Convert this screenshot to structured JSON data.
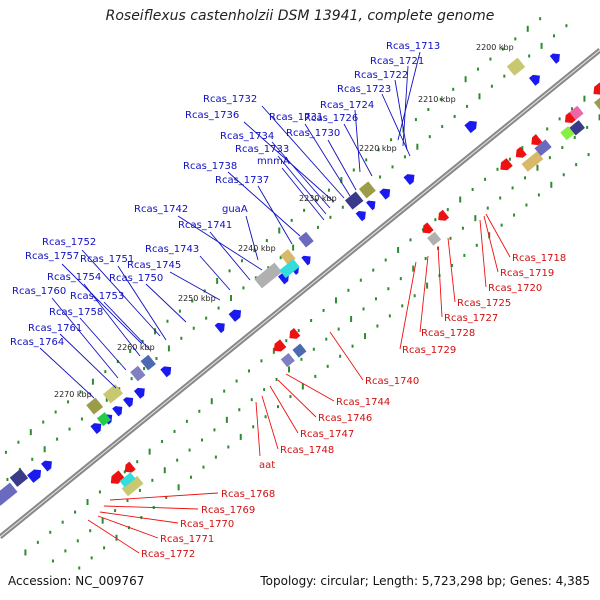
{
  "title": "Roseiflexus castenholzii DSM 13941, complete genome",
  "footer": {
    "accession": "Accession: NC_009767",
    "stats": "Topology: circular; Length: 5,723,298 bp; Genes: 4,385"
  },
  "colors": {
    "forward_strand": "#1a1aee",
    "reverse_strand": "#ee1111",
    "backbone": "#888888",
    "tick": "#2e8b2e",
    "top_label": "#1010c0",
    "bottom_label": "#d01010"
  },
  "scale_labels": [
    "2200 kbp",
    "2210 kbp",
    "2220 kbp",
    "2230 kbp",
    "2240 kbp",
    "2250 kbp",
    "2260 kbp",
    "2270 kbp"
  ],
  "top_labels": [
    "Rcas_1713",
    "Rcas_1721",
    "Rcas_1722",
    "Rcas_1723",
    "Rcas_1724",
    "Rcas_1726",
    "Rcas_1732",
    "Rcas_1736",
    "Rcas_1731",
    "Rcas_1730",
    "Rcas_1734",
    "Rcas_1733",
    "mnmA",
    "Rcas_1738",
    "Rcas_1737",
    "Rcas_1742",
    "guaA",
    "Rcas_1741",
    "Rcas_1743",
    "Rcas_1745",
    "Rcas_1752",
    "Rcas_1757",
    "Rcas_1751",
    "Rcas_1754",
    "Rcas_1750",
    "Rcas_1760",
    "Rcas_1753",
    "Rcas_1758",
    "Rcas_1761",
    "Rcas_1764"
  ],
  "bottom_labels": [
    "Rcas_1718",
    "Rcas_1719",
    "Rcas_1720",
    "Rcas_1725",
    "Rcas_1727",
    "Rcas_1728",
    "Rcas_1729",
    "Rcas_1740",
    "Rcas_1744",
    "Rcas_1746",
    "Rcas_1747",
    "Rcas_1748",
    "aat",
    "Rcas_1768",
    "Rcas_1769",
    "Rcas_1770",
    "Rcas_1771",
    "Rcas_1772"
  ]
}
